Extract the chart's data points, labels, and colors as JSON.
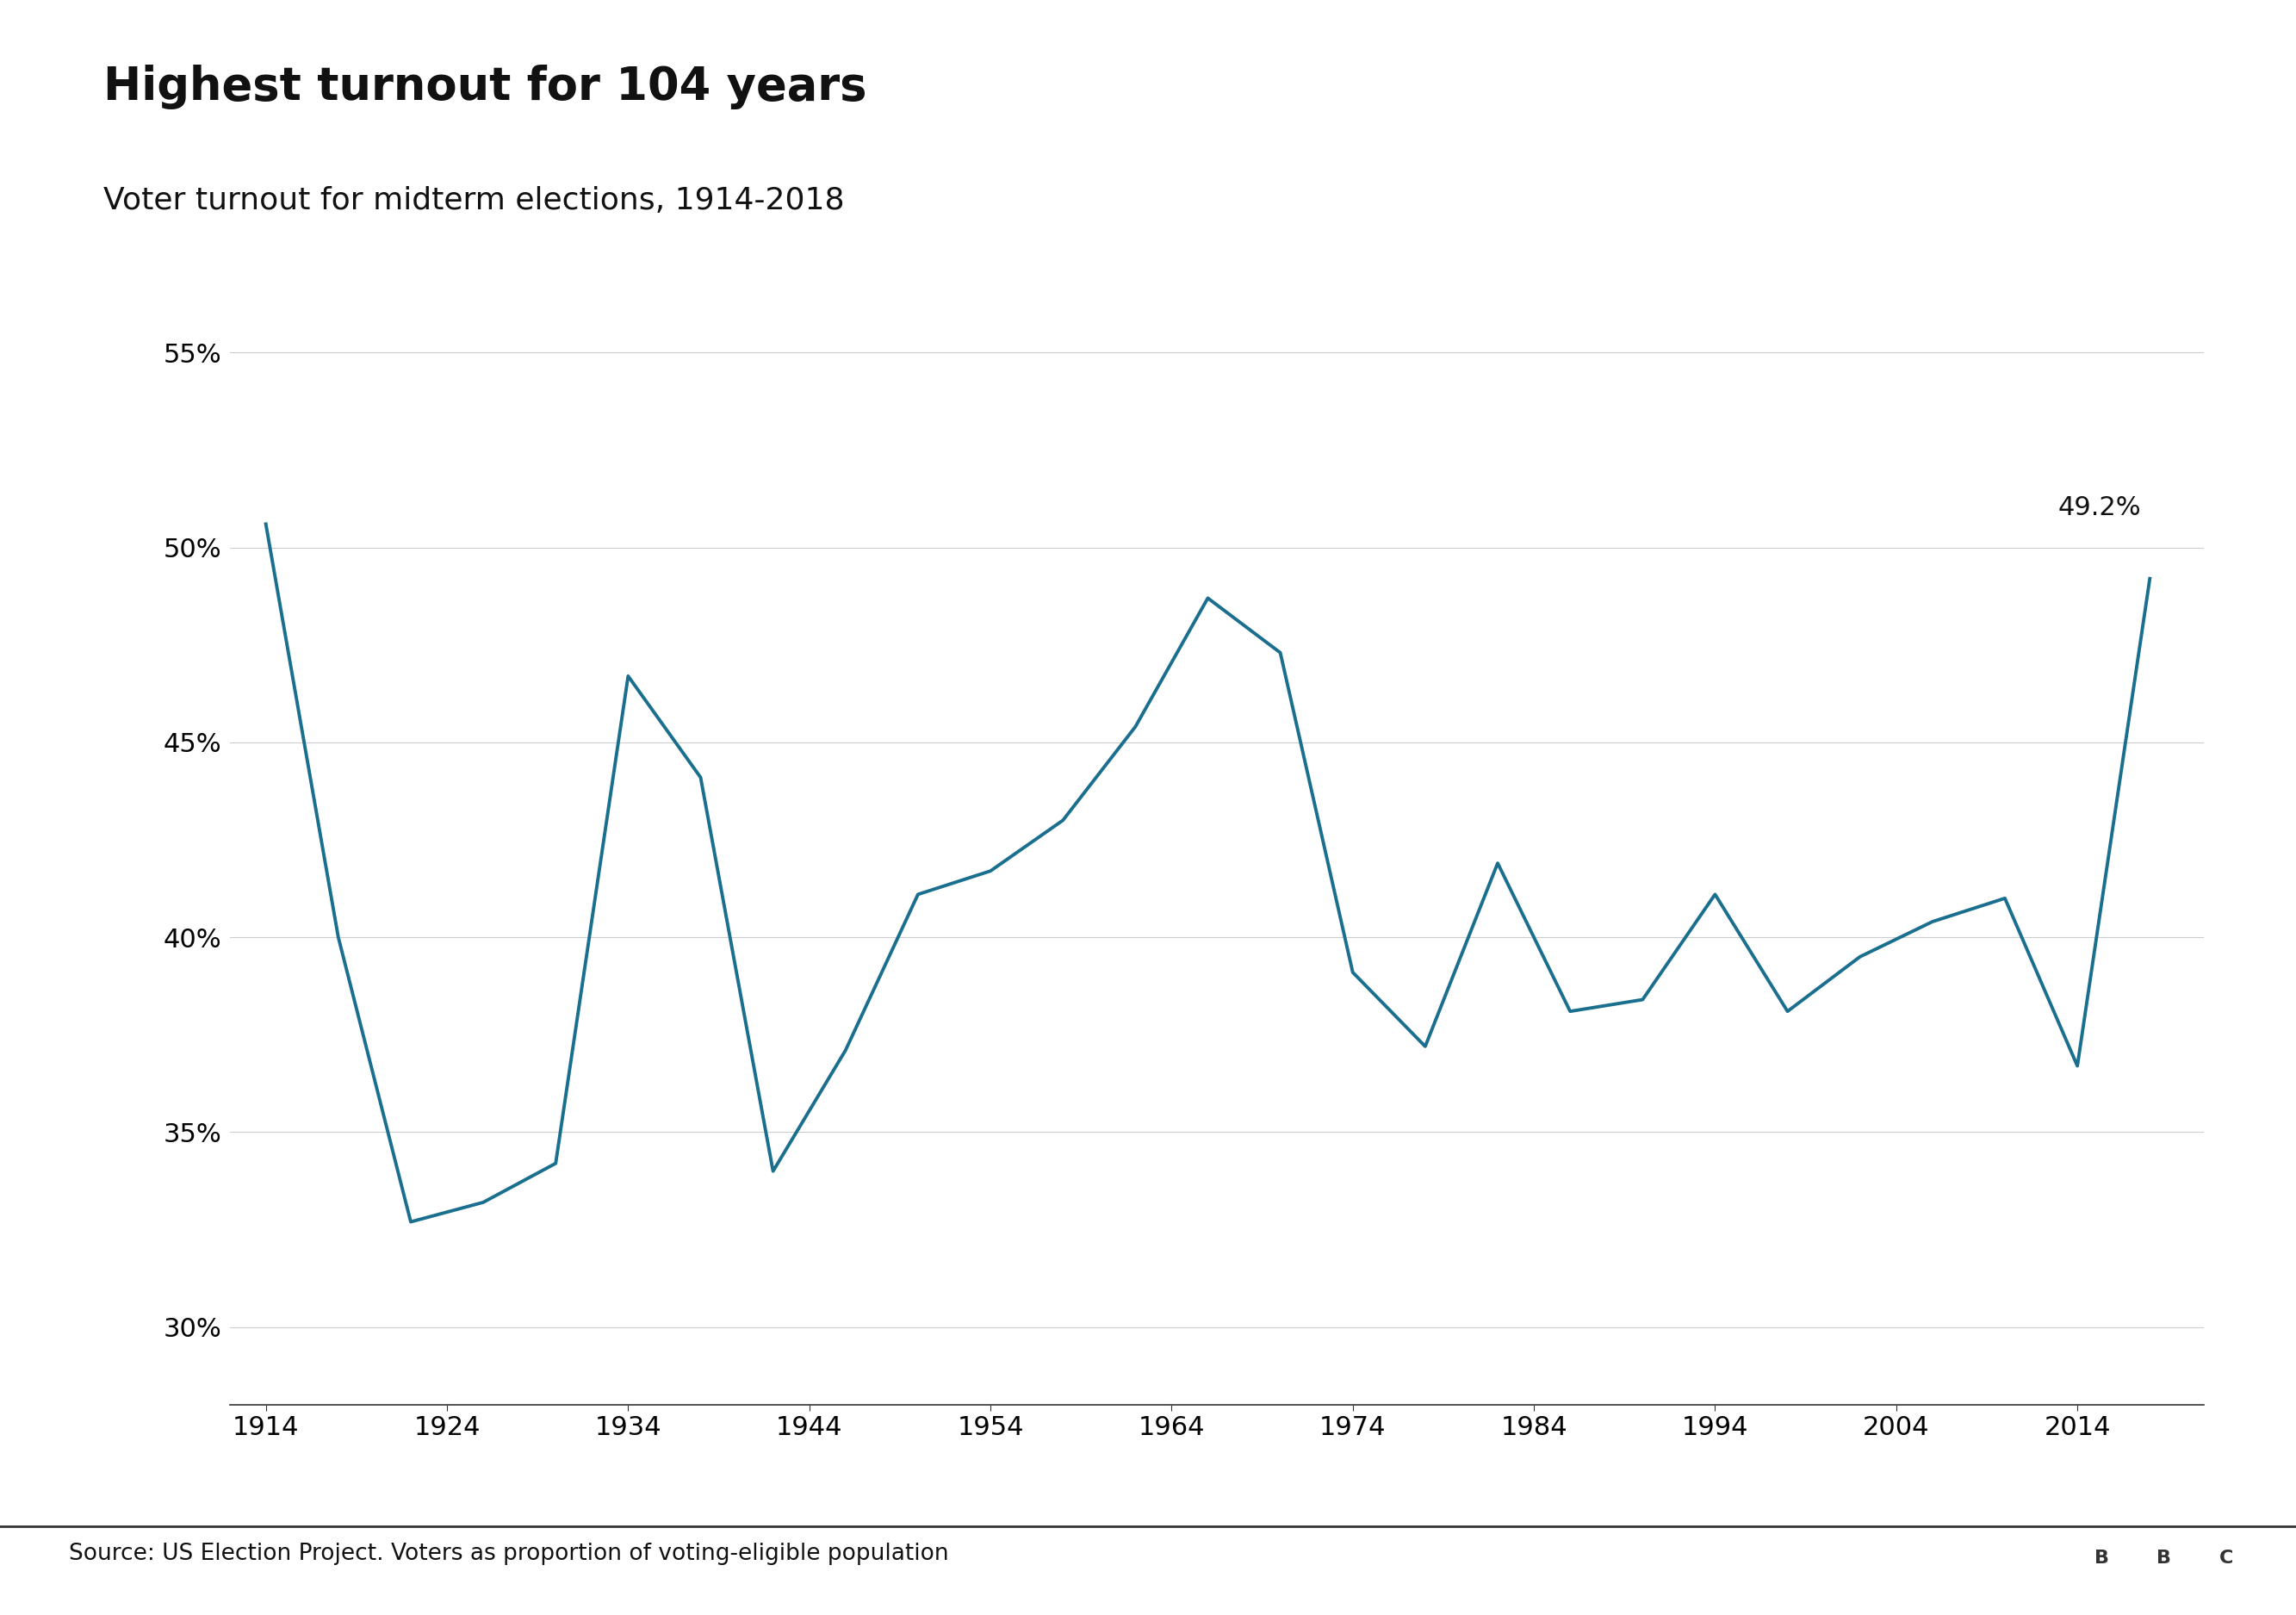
{
  "title": "Highest turnout for 104 years",
  "subtitle": "Voter turnout for midterm elections, 1914-2018",
  "source_text": "Source: US Election Project. Voters as proportion of voting-eligible population",
  "years": [
    1914,
    1918,
    1922,
    1926,
    1930,
    1934,
    1938,
    1942,
    1946,
    1950,
    1954,
    1958,
    1962,
    1966,
    1970,
    1974,
    1978,
    1982,
    1986,
    1990,
    1994,
    1998,
    2002,
    2006,
    2010,
    2014,
    2018
  ],
  "values": [
    50.6,
    40.0,
    32.7,
    33.2,
    34.2,
    46.7,
    44.1,
    34.0,
    37.1,
    41.1,
    41.7,
    43.0,
    45.4,
    48.7,
    47.3,
    39.1,
    37.2,
    41.9,
    38.1,
    38.4,
    41.1,
    38.1,
    39.5,
    40.4,
    41.0,
    36.7,
    49.2
  ],
  "line_color": "#1a6e8e",
  "background_color": "#ffffff",
  "ytick_labels": [
    "55%",
    "50%",
    "45%",
    "40%",
    "35%",
    "30%"
  ],
  "ytick_values": [
    55,
    50,
    45,
    40,
    35,
    30
  ],
  "xtick_labels": [
    "1914",
    "1924",
    "1934",
    "1944",
    "1954",
    "1964",
    "1974",
    "1984",
    "1994",
    "2004",
    "2014"
  ],
  "xtick_values": [
    1914,
    1924,
    1934,
    1944,
    1954,
    1964,
    1974,
    1984,
    1994,
    2004,
    2014
  ],
  "ylim": [
    28,
    57
  ],
  "xlim": [
    1912,
    2021
  ],
  "annotation_text": "49.2%",
  "annotation_year": 2018,
  "annotation_value": 49.2,
  "line_width": 2.8,
  "title_fontsize": 38,
  "subtitle_fontsize": 26,
  "tick_fontsize": 22,
  "source_fontsize": 19,
  "annotation_fontsize": 22
}
